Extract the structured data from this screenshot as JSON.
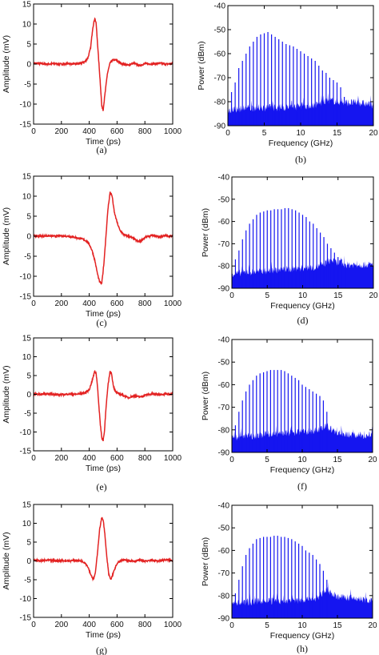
{
  "colors": {
    "time_trace": "#e32222",
    "spectrum": "#1515f0",
    "axis": "#000000"
  },
  "chart_data": [
    {
      "id": "a",
      "type": "line",
      "caption": "(a)",
      "xlabel": "Time (ps)",
      "ylabel": "Amplitude (mV)",
      "xlim": [
        0,
        1000
      ],
      "ylim": [
        -15,
        15
      ],
      "xticks": [
        0,
        200,
        400,
        600,
        800,
        1000
      ],
      "yticks": [
        15,
        10,
        5,
        0,
        -5,
        -10,
        -15
      ],
      "series": [
        {
          "x": [
            0,
            50,
            100,
            150,
            200,
            250,
            300,
            340,
            370,
            390,
            410,
            425,
            440,
            450,
            460,
            470,
            480,
            490,
            500,
            515,
            530,
            550,
            570,
            590,
            610,
            640,
            680,
            720,
            760,
            800,
            850,
            900,
            950,
            1000
          ],
          "y": [
            0.2,
            0.1,
            0.0,
            0.1,
            0.0,
            0.1,
            0.0,
            0.2,
            0.6,
            1.5,
            4.0,
            9.0,
            11.5,
            10.0,
            5.0,
            0.0,
            -5.0,
            -10.5,
            -11.5,
            -7.0,
            -2.5,
            0.3,
            1.0,
            1.0,
            0.6,
            0.0,
            -0.3,
            0.2,
            -0.4,
            0.1,
            0.0,
            0.2,
            0.0,
            0.1
          ]
        }
      ]
    },
    {
      "id": "b",
      "type": "bar",
      "caption": "(b)",
      "xlabel": "Frequency (GHz)",
      "ylabel": "Power (dBm)",
      "xlim": [
        0,
        20
      ],
      "ylim": [
        -90,
        -40
      ],
      "xticks": [
        0,
        5,
        10,
        15,
        20
      ],
      "yticks": [
        -40,
        -50,
        -60,
        -70,
        -80,
        -90
      ],
      "comb": {
        "x": [
          0.5,
          1.0,
          1.5,
          2.0,
          2.5,
          3.0,
          3.5,
          4.0,
          4.5,
          5.0,
          5.5,
          6.0,
          6.5,
          7.0,
          7.5,
          8.0,
          8.5,
          9.0,
          9.5,
          10.0,
          10.5,
          11.0,
          11.5,
          12.0,
          12.5,
          13.0,
          13.5,
          14.0,
          14.5,
          15.0,
          15.5,
          16.0
        ],
        "y": [
          -76,
          -72,
          -66,
          -63,
          -60,
          -57,
          -55,
          -53,
          -52,
          -51.5,
          -51,
          -52,
          -53,
          -54,
          -55,
          -56,
          -56.5,
          -57,
          -58,
          -59,
          -60,
          -61,
          -62,
          -63,
          -65,
          -67,
          -68,
          -70,
          -71,
          -72,
          -74,
          -78
        ]
      },
      "noise_floor": {
        "x": [
          0,
          4,
          8,
          12,
          14,
          16,
          18,
          20
        ],
        "y": [
          -84,
          -83,
          -83,
          -82,
          -80,
          -81,
          -81,
          -82
        ]
      }
    },
    {
      "id": "c",
      "type": "line",
      "caption": "(c)",
      "xlabel": "Time (ps)",
      "ylabel": "Amplitude (mV)",
      "xlim": [
        0,
        1000
      ],
      "ylim": [
        -15,
        15
      ],
      "xticks": [
        0,
        200,
        400,
        600,
        800,
        1000
      ],
      "yticks": [
        15,
        10,
        5,
        0,
        -5,
        -10,
        -15
      ],
      "series": [
        {
          "x": [
            0,
            50,
            100,
            150,
            200,
            250,
            300,
            350,
            380,
            400,
            420,
            440,
            460,
            475,
            490,
            505,
            520,
            535,
            550,
            565,
            580,
            600,
            620,
            650,
            700,
            750,
            770,
            800,
            850,
            900,
            950,
            1000
          ],
          "y": [
            0.1,
            0.0,
            0.1,
            0.0,
            0.1,
            0.0,
            -0.3,
            -0.7,
            -1.2,
            -2.0,
            -3.5,
            -6.0,
            -9.5,
            -11.5,
            -11.8,
            -7.0,
            0.0,
            7.0,
            11.0,
            10.0,
            6.0,
            3.5,
            1.5,
            0.3,
            -0.2,
            -1.3,
            -1.2,
            -0.3,
            0.2,
            -0.1,
            0.1,
            0.0
          ]
        }
      ]
    },
    {
      "id": "d",
      "type": "bar",
      "caption": "(d)",
      "xlabel": "Frequency (GHz)",
      "ylabel": "Power (dBm)",
      "xlim": [
        0,
        20
      ],
      "ylim": [
        -90,
        -40
      ],
      "xticks": [
        0,
        5,
        10,
        15,
        20
      ],
      "yticks": [
        -40,
        -50,
        -60,
        -70,
        -80,
        -90
      ],
      "comb": {
        "x": [
          0.5,
          1.0,
          1.5,
          2.0,
          2.5,
          3.0,
          3.5,
          4.0,
          4.5,
          5.0,
          5.5,
          6.0,
          6.5,
          7.0,
          7.5,
          8.0,
          8.5,
          9.0,
          9.5,
          10.0,
          10.5,
          11.0,
          11.5,
          12.0,
          12.5,
          13.0,
          13.5,
          14.0,
          14.5,
          15.0,
          15.5,
          16.0
        ],
        "y": [
          -77,
          -73,
          -68,
          -64,
          -61,
          -59,
          -57,
          -56,
          -55.5,
          -55,
          -55,
          -54.5,
          -54.5,
          -54.5,
          -54,
          -54,
          -54.5,
          -55,
          -56,
          -57,
          -58,
          -60,
          -61,
          -63,
          -65,
          -67,
          -70,
          -72,
          -74,
          -76,
          -77,
          -79
        ]
      },
      "noise_floor": {
        "x": [
          0,
          4,
          8,
          12,
          14,
          16,
          18,
          20
        ],
        "y": [
          -84,
          -83,
          -82,
          -81,
          -78,
          -80,
          -80,
          -80
        ]
      }
    },
    {
      "id": "e",
      "type": "line",
      "caption": "(e)",
      "xlabel": "Time (ps)",
      "ylabel": "Amplitude (mV)",
      "xlim": [
        0,
        1000
      ],
      "ylim": [
        -15,
        15
      ],
      "xticks": [
        0,
        200,
        400,
        600,
        800,
        1000
      ],
      "yticks": [
        15,
        10,
        5,
        0,
        -5,
        -10,
        -15
      ],
      "series": [
        {
          "x": [
            0,
            50,
            100,
            150,
            200,
            250,
            300,
            340,
            370,
            400,
            420,
            440,
            450,
            460,
            470,
            480,
            490,
            500,
            510,
            520,
            535,
            550,
            560,
            575,
            590,
            610,
            640,
            680,
            720,
            770,
            800,
            850,
            900,
            950,
            1000
          ],
          "y": [
            0.1,
            0.0,
            0.1,
            0.0,
            -0.1,
            0.1,
            0.0,
            0.2,
            0.4,
            1.2,
            3.5,
            6.2,
            5.5,
            2.0,
            -3.5,
            -8.0,
            -11.5,
            -12.3,
            -9.5,
            -4.0,
            2.5,
            6.2,
            5.5,
            2.0,
            0.6,
            0.2,
            -0.2,
            -0.9,
            -0.4,
            -0.7,
            -0.2,
            0.1,
            0.0,
            0.1,
            0.0
          ]
        }
      ]
    },
    {
      "id": "f",
      "type": "bar",
      "caption": "(f)",
      "xlabel": "Frequency (GHz)",
      "ylabel": "Power (dBm)",
      "xlim": [
        0,
        20
      ],
      "ylim": [
        -90,
        -40
      ],
      "xticks": [
        0,
        5,
        10,
        15,
        20
      ],
      "yticks": [
        -40,
        -50,
        -60,
        -70,
        -80,
        -90
      ],
      "comb": {
        "x": [
          0.5,
          1.0,
          1.5,
          2.0,
          2.5,
          3.0,
          3.5,
          4.0,
          4.5,
          5.0,
          5.5,
          6.0,
          6.5,
          7.0,
          7.5,
          8.0,
          8.5,
          9.0,
          9.5,
          10.0,
          10.5,
          11.0,
          11.5,
          12.0,
          12.5,
          13.0,
          13.5
        ],
        "y": [
          -78,
          -72,
          -67,
          -63,
          -60,
          -58,
          -56,
          -55,
          -54.5,
          -54,
          -53.5,
          -53.5,
          -53.5,
          -53.5,
          -54,
          -55,
          -56,
          -57,
          -58,
          -60,
          -61,
          -62,
          -63,
          -64,
          -65,
          -67,
          -72
        ]
      },
      "noise_floor": {
        "x": [
          0,
          4,
          8,
          12,
          13.5,
          15,
          18,
          20
        ],
        "y": [
          -84,
          -83,
          -82,
          -81,
          -79,
          -82,
          -83,
          -83
        ]
      }
    },
    {
      "id": "g",
      "type": "line",
      "caption": "(g)",
      "xlabel": "Time (ps)",
      "ylabel": "Amplitude (mV)",
      "xlim": [
        0,
        1000
      ],
      "ylim": [
        -15,
        15
      ],
      "xticks": [
        0,
        200,
        400,
        600,
        800,
        1000
      ],
      "yticks": [
        15,
        10,
        5,
        0,
        -5,
        -10,
        -15
      ],
      "series": [
        {
          "x": [
            0,
            50,
            100,
            150,
            200,
            250,
            300,
            340,
            370,
            390,
            410,
            430,
            445,
            460,
            475,
            490,
            500,
            510,
            525,
            540,
            555,
            570,
            590,
            610,
            640,
            680,
            720,
            760,
            800,
            850,
            900,
            950,
            1000
          ],
          "y": [
            0.2,
            0.0,
            0.2,
            0.0,
            0.1,
            0.0,
            0.2,
            0.0,
            -0.5,
            -1.5,
            -3.5,
            -5.0,
            -3.0,
            2.5,
            8.5,
            11.5,
            11.0,
            8.0,
            1.5,
            -3.5,
            -5.0,
            -3.5,
            -1.5,
            -0.3,
            0.3,
            0.1,
            -0.1,
            0.2,
            0.0,
            0.2,
            0.0,
            0.3,
            0.1
          ]
        }
      ]
    },
    {
      "id": "h",
      "type": "bar",
      "caption": "(h)",
      "xlabel": "Frequency (GHz)",
      "ylabel": "Power (dBm)",
      "xlim": [
        0,
        20
      ],
      "ylim": [
        -90,
        -40
      ],
      "xticks": [
        0,
        5,
        10,
        15,
        20
      ],
      "yticks": [
        -40,
        -50,
        -60,
        -70,
        -80,
        -90
      ],
      "comb": {
        "x": [
          0.5,
          1.0,
          1.5,
          2.0,
          2.5,
          3.0,
          3.5,
          4.0,
          4.5,
          5.0,
          5.5,
          6.0,
          6.5,
          7.0,
          7.5,
          8.0,
          8.5,
          9.0,
          9.5,
          10.0,
          10.5,
          11.0,
          11.5,
          12.0,
          12.5,
          13.0,
          13.5
        ],
        "y": [
          -79,
          -73,
          -67,
          -62,
          -59,
          -57,
          -55,
          -54.5,
          -54,
          -54,
          -54,
          -53.5,
          -53.5,
          -54,
          -54,
          -54.5,
          -55,
          -56,
          -57,
          -58,
          -60,
          -61,
          -62,
          -64,
          -66,
          -69,
          -73
        ]
      },
      "noise_floor": {
        "x": [
          0,
          4,
          8,
          12,
          13.5,
          15,
          18,
          20
        ],
        "y": [
          -84,
          -83,
          -83,
          -82,
          -78,
          -81,
          -82,
          -83
        ]
      }
    }
  ]
}
